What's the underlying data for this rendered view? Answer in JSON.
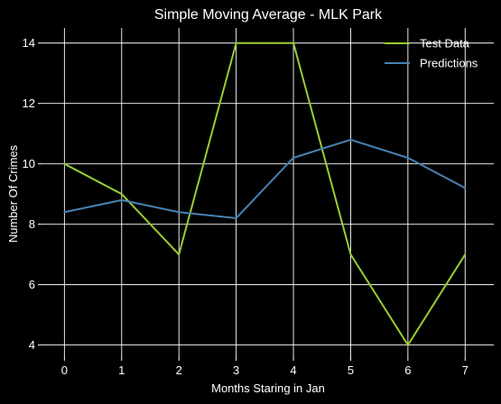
{
  "chart_data": {
    "type": "line",
    "title": "Simple Moving Average - MLK Park",
    "xlabel": "Months Staring in Jan",
    "ylabel": "Number Of Crimes",
    "x": [
      0,
      1,
      2,
      3,
      4,
      5,
      6,
      7
    ],
    "xticks": [
      "0",
      "1",
      "2",
      "3",
      "4",
      "5",
      "6",
      "7"
    ],
    "yticks": [
      "4",
      "6",
      "8",
      "10",
      "12",
      "14"
    ],
    "xlim": [
      -0.4,
      7.5
    ],
    "ylim": [
      3.6,
      14.5
    ],
    "grid": true,
    "legend_position": "top-right",
    "series": [
      {
        "name": "Test Data",
        "values": [
          10,
          9,
          7,
          14,
          14,
          7,
          4,
          7
        ],
        "color": "#9acd32"
      },
      {
        "name": "Predictions",
        "values": [
          8.4,
          8.8,
          8.4,
          8.2,
          10.2,
          10.8,
          10.2,
          9.2
        ],
        "color": "#4682b4"
      }
    ]
  }
}
